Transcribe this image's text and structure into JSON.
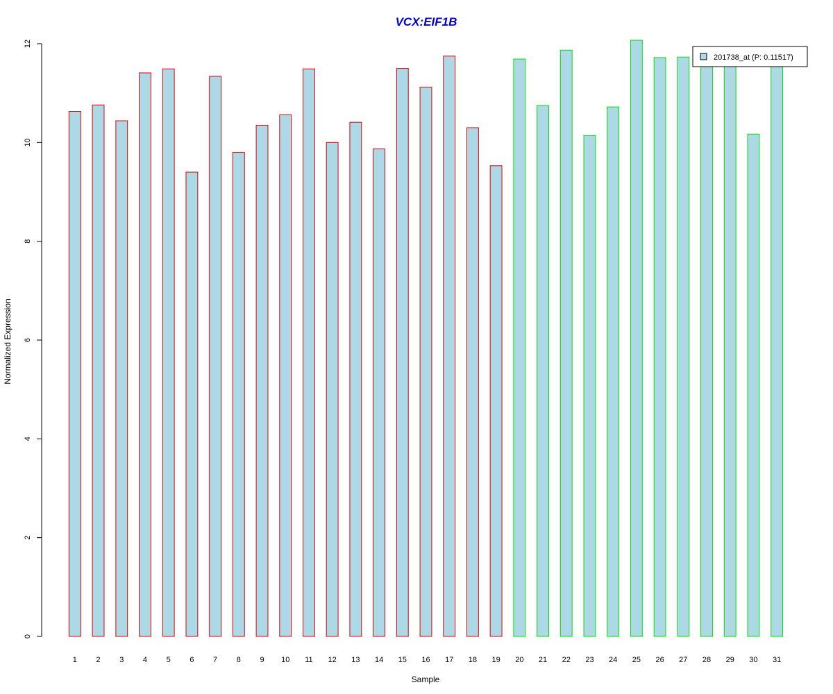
{
  "chart_data": {
    "type": "bar",
    "title": "VCX:EIF1B",
    "xlabel": "Sample",
    "ylabel": "Normalized Expression",
    "ylim": [
      0,
      12
    ],
    "yticks": [
      "0",
      "2",
      "4",
      "6",
      "8",
      "10",
      "12"
    ],
    "grid": false,
    "legend_position": "top-right",
    "categories": [
      "1",
      "2",
      "3",
      "4",
      "5",
      "6",
      "7",
      "8",
      "9",
      "10",
      "11",
      "12",
      "13",
      "14",
      "15",
      "16",
      "17",
      "18",
      "19",
      "20",
      "21",
      "22",
      "23",
      "24",
      "25",
      "26",
      "27",
      "28",
      "29",
      "30",
      "31"
    ],
    "series": [
      {
        "name": "201738_at (P: 0.11517)",
        "values": [
          10.63,
          10.76,
          10.44,
          11.41,
          11.49,
          9.4,
          11.34,
          9.8,
          10.35,
          10.56,
          11.49,
          10.0,
          10.41,
          9.87,
          11.5,
          11.12,
          11.75,
          10.3,
          9.53,
          11.69,
          10.75,
          11.87,
          10.14,
          10.72,
          12.07,
          11.72,
          11.73,
          11.62,
          11.64,
          10.17,
          11.66
        ]
      }
    ],
    "group_colors": [
      "#e00000",
      "#e00000",
      "#e00000",
      "#e00000",
      "#e00000",
      "#e00000",
      "#e00000",
      "#e00000",
      "#e00000",
      "#e00000",
      "#e00000",
      "#e00000",
      "#e00000",
      "#e00000",
      "#e00000",
      "#e00000",
      "#e00000",
      "#e00000",
      "#e00000",
      "#00e000",
      "#00e000",
      "#00e000",
      "#00e000",
      "#00e000",
      "#00e000",
      "#00e000",
      "#00e000",
      "#00e000",
      "#00e000",
      "#00e000",
      "#00e000"
    ],
    "bar_fill": "#add8e6"
  }
}
